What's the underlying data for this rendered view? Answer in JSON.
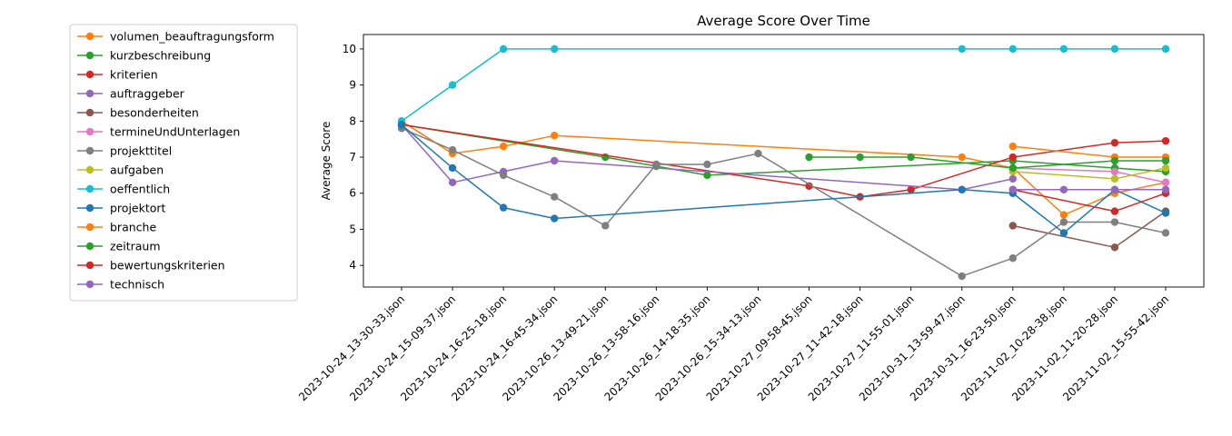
{
  "chart_data": {
    "type": "line",
    "title": "Average Score Over Time",
    "xlabel": "",
    "ylabel": "Average Score",
    "ylim": [
      3.4,
      10.4
    ],
    "yticks": [
      4,
      5,
      6,
      7,
      8,
      9,
      10
    ],
    "grid": false,
    "legend_placement": "outside-left",
    "categories": [
      "2023-10-24_13-30-33.json",
      "2023-10-24_15-09-37.json",
      "2023-10-24_16-25-18.json",
      "2023-10-24_16-45-34.json",
      "2023-10-26_13-49-21.json",
      "2023-10-26_13-58-16.json",
      "2023-10-26_14-18-35.json",
      "2023-10-26_15-34-13.json",
      "2023-10-27_09-58-45.json",
      "2023-10-27_11-42-18.json",
      "2023-10-27_11-55-01.json",
      "2023-10-31_13-59-47.json",
      "2023-10-31_16-23-50.json",
      "2023-11-02_10-28-38.json",
      "2023-11-02_11-20-28.json",
      "2023-11-02_15-55-42.json"
    ],
    "series": [
      {
        "name": "volumen_beauftragungsform",
        "color": "#ff7f0e",
        "values": [
          8.0,
          7.1,
          7.3,
          7.6,
          null,
          null,
          null,
          null,
          null,
          null,
          null,
          7.0,
          6.7,
          5.4,
          6.0,
          6.3
        ]
      },
      {
        "name": "kurzbeschreibung",
        "color": "#2ca02c",
        "values": [
          7.9,
          null,
          null,
          null,
          7.0,
          6.75,
          6.5,
          null,
          null,
          null,
          null,
          null,
          6.9,
          null,
          6.7,
          6.6
        ]
      },
      {
        "name": "kriterien",
        "color": "#d62728",
        "values": [
          7.9,
          null,
          null,
          null,
          null,
          null,
          null,
          null,
          6.2,
          5.9,
          6.1,
          null,
          7.0,
          null,
          7.4,
          7.45
        ]
      },
      {
        "name": "auftraggeber",
        "color": "#9467bd",
        "values": [
          7.9,
          6.3,
          6.6,
          6.9,
          null,
          null,
          null,
          null,
          null,
          null,
          null,
          6.1,
          6.4,
          null,
          null,
          null
        ]
      },
      {
        "name": "besonderheiten",
        "color": "#8c564b",
        "values": [
          null,
          null,
          null,
          null,
          null,
          null,
          null,
          null,
          null,
          null,
          null,
          null,
          5.1,
          null,
          4.5,
          5.5
        ]
      },
      {
        "name": "termineUndUnterlagen",
        "color": "#e377c2",
        "values": [
          null,
          null,
          null,
          null,
          null,
          null,
          null,
          null,
          null,
          null,
          null,
          null,
          6.7,
          null,
          6.6,
          6.3
        ]
      },
      {
        "name": "projekttitel",
        "color": "#7f7f7f",
        "values": [
          7.8,
          7.2,
          6.5,
          5.9,
          5.1,
          6.8,
          6.8,
          7.1,
          null,
          null,
          null,
          3.7,
          4.2,
          5.2,
          5.2,
          4.9
        ]
      },
      {
        "name": "aufgaben",
        "color": "#bcbd22",
        "values": [
          null,
          null,
          null,
          null,
          null,
          null,
          null,
          null,
          null,
          null,
          null,
          null,
          6.6,
          null,
          6.4,
          6.7
        ]
      },
      {
        "name": "oeffentlich",
        "color": "#17becf",
        "values": [
          8.0,
          9.0,
          10.0,
          10.0,
          null,
          null,
          null,
          null,
          null,
          null,
          null,
          10.0,
          10.0,
          10.0,
          10.0,
          10.0
        ]
      },
      {
        "name": "projektort",
        "color": "#1f77b4",
        "values": [
          7.9,
          6.7,
          5.6,
          5.3,
          null,
          null,
          null,
          null,
          null,
          null,
          null,
          6.1,
          6.0,
          4.9,
          6.1,
          5.45
        ]
      },
      {
        "name": "branche",
        "color": "#ff7f0e",
        "values": [
          null,
          null,
          null,
          null,
          null,
          null,
          null,
          null,
          null,
          null,
          null,
          null,
          7.3,
          null,
          7.0,
          7.0
        ]
      },
      {
        "name": "zeitraum",
        "color": "#2ca02c",
        "values": [
          null,
          null,
          null,
          null,
          null,
          null,
          null,
          null,
          7.0,
          7.0,
          7.0,
          null,
          6.7,
          null,
          6.9,
          6.9
        ]
      },
      {
        "name": "bewertungskriterien",
        "color": "#d62728",
        "values": [
          null,
          null,
          null,
          null,
          null,
          null,
          null,
          null,
          null,
          null,
          null,
          null,
          6.1,
          null,
          5.5,
          6.0
        ]
      },
      {
        "name": "technisch",
        "color": "#9467bd",
        "values": [
          null,
          null,
          null,
          null,
          null,
          null,
          null,
          null,
          null,
          null,
          null,
          null,
          6.1,
          6.1,
          6.1,
          6.1
        ]
      }
    ]
  }
}
